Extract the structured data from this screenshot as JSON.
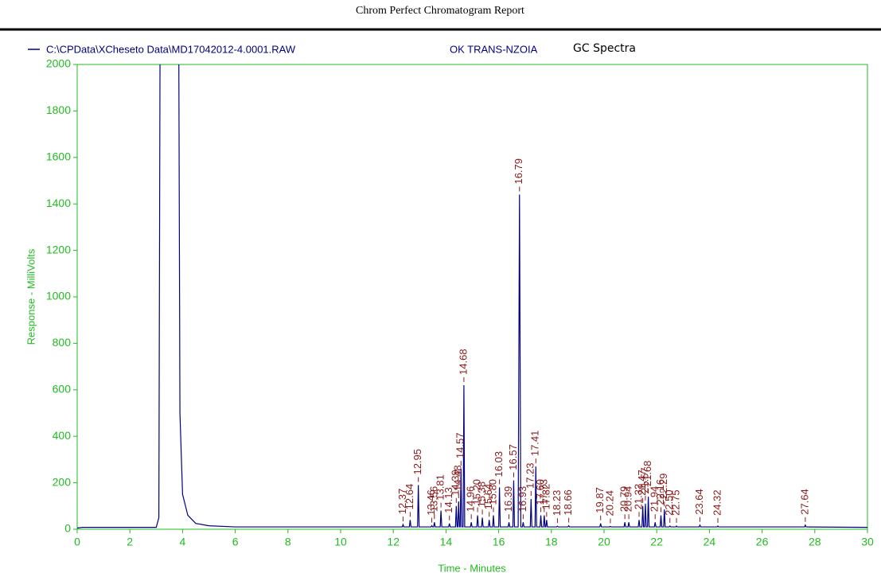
{
  "chart_data": {
    "type": "line",
    "title": "Chrom Perfect Chromatogram Report",
    "subtitle": "OK TRANS-NZOIA",
    "annotation": "GC Spectra",
    "x_label": "Time - Minutes",
    "y_label": "Response - MilliVolts",
    "xlim": [
      0,
      30
    ],
    "xticks": [
      0,
      2,
      4,
      6,
      8,
      10,
      12,
      14,
      16,
      18,
      20,
      22,
      24,
      26,
      28,
      30
    ],
    "ylim": [
      0,
      2000
    ],
    "yticks": [
      0,
      200,
      400,
      600,
      800,
      1000,
      1200,
      1400,
      1600,
      1800,
      2000
    ],
    "axis_color": "#22bb22",
    "label_color": "#8b1a1a",
    "series": [
      {
        "name": "C:\\CPData\\XCheseto Data\\MD17042012-4.0001.RAW",
        "color": "#000080",
        "x": [
          0,
          0.2,
          3.0,
          3.1,
          3.15,
          3.85,
          3.9,
          4.0,
          4.2,
          4.5,
          5,
          6,
          12.3,
          12.34,
          12.37,
          12.4,
          12.61,
          12.64,
          12.67,
          12.92,
          12.95,
          12.98,
          13.43,
          13.46,
          13.49,
          13.53,
          13.56,
          13.59,
          13.78,
          13.81,
          13.84,
          14.1,
          14.13,
          14.16,
          14.36,
          14.39,
          14.42,
          14.45,
          14.48,
          14.51,
          14.54,
          14.57,
          14.6,
          14.65,
          14.68,
          14.71,
          14.93,
          14.96,
          14.99,
          15.17,
          15.2,
          15.23,
          15.35,
          15.38,
          15.41,
          15.61,
          15.64,
          15.67,
          15.77,
          15.8,
          15.83,
          16.0,
          16.03,
          16.06,
          16.36,
          16.39,
          16.42,
          16.54,
          16.57,
          16.6,
          16.74,
          16.79,
          16.84,
          16.9,
          16.93,
          16.96,
          17.2,
          17.23,
          17.26,
          17.38,
          17.41,
          17.44,
          17.57,
          17.6,
          17.63,
          17.7,
          17.73,
          17.76,
          17.79,
          17.82,
          17.85,
          18.2,
          18.23,
          18.26,
          18.63,
          18.66,
          18.69,
          19.84,
          19.87,
          19.9,
          20.21,
          20.24,
          20.27,
          20.76,
          20.79,
          20.82,
          20.91,
          20.94,
          20.97,
          21.3,
          21.33,
          21.36,
          21.44,
          21.47,
          21.5,
          21.54,
          21.57,
          21.6,
          21.65,
          21.68,
          21.71,
          21.91,
          21.94,
          21.97,
          22.13,
          22.16,
          22.19,
          22.26,
          22.29,
          22.32,
          22.47,
          22.5,
          22.53,
          22.72,
          22.75,
          22.78,
          23.61,
          23.64,
          23.67,
          24.29,
          24.32,
          24.35,
          27.61,
          27.64,
          27.67,
          30
        ],
        "values": [
          5,
          8,
          8,
          50,
          2300,
          2300,
          500,
          150,
          60,
          25,
          15,
          10,
          10,
          10,
          20,
          10,
          10,
          40,
          10,
          10,
          190,
          10,
          10,
          15,
          10,
          10,
          30,
          10,
          10,
          80,
          10,
          10,
          25,
          10,
          10,
          100,
          10,
          10,
          120,
          10,
          10,
          260,
          10,
          10,
          620,
          10,
          10,
          30,
          10,
          10,
          60,
          10,
          10,
          50,
          10,
          10,
          40,
          10,
          10,
          60,
          10,
          10,
          180,
          10,
          10,
          30,
          10,
          10,
          210,
          10,
          10,
          1440,
          10,
          10,
          30,
          10,
          10,
          130,
          10,
          10,
          270,
          10,
          10,
          60,
          10,
          10,
          60,
          10,
          10,
          40,
          10,
          10,
          13,
          10,
          10,
          15,
          10,
          10,
          25,
          10,
          10,
          12,
          10,
          10,
          30,
          10,
          10,
          30,
          10,
          10,
          40,
          10,
          10,
          100,
          10,
          10,
          110,
          10,
          10,
          140,
          10,
          10,
          30,
          10,
          10,
          60,
          10,
          10,
          85,
          10,
          10,
          14,
          10,
          10,
          14,
          10,
          10,
          18,
          10,
          10,
          14,
          10,
          10,
          18,
          10,
          8
        ]
      }
    ],
    "peak_labels": [
      12.37,
      12.64,
      12.95,
      13.46,
      13.56,
      13.81,
      14.13,
      14.39,
      14.48,
      14.57,
      14.68,
      14.96,
      15.2,
      15.38,
      15.64,
      15.8,
      16.03,
      16.39,
      16.57,
      16.79,
      16.93,
      17.23,
      17.41,
      17.6,
      17.73,
      17.82,
      18.23,
      18.66,
      19.87,
      20.24,
      20.79,
      20.94,
      21.33,
      21.47,
      21.57,
      21.68,
      21.94,
      22.16,
      22.29,
      22.5,
      22.75,
      23.64,
      24.32,
      27.64
    ],
    "peak_value_labels": [
      "12.37",
      "12.64",
      "12.95",
      "13.46",
      "13.56",
      "13.81",
      "14.13",
      "14.39",
      "14.48",
      "14.57",
      "14.68",
      "14.96",
      "15.20",
      "15.38",
      "15.64",
      "15.80",
      "16.03",
      "16.39",
      "16.57",
      "16.79",
      "16.93",
      "17.23",
      "17.41",
      "17.60",
      "17.73",
      "17.82",
      "18.23",
      "18.66",
      "19.87",
      "20.24",
      "20.79",
      "20.94",
      "21.33",
      "21.47",
      "21.57",
      "21.68",
      "21.94",
      "22.16",
      "22.29",
      "22.50",
      "22.75",
      "23.64",
      "24.32",
      "27.64"
    ]
  }
}
